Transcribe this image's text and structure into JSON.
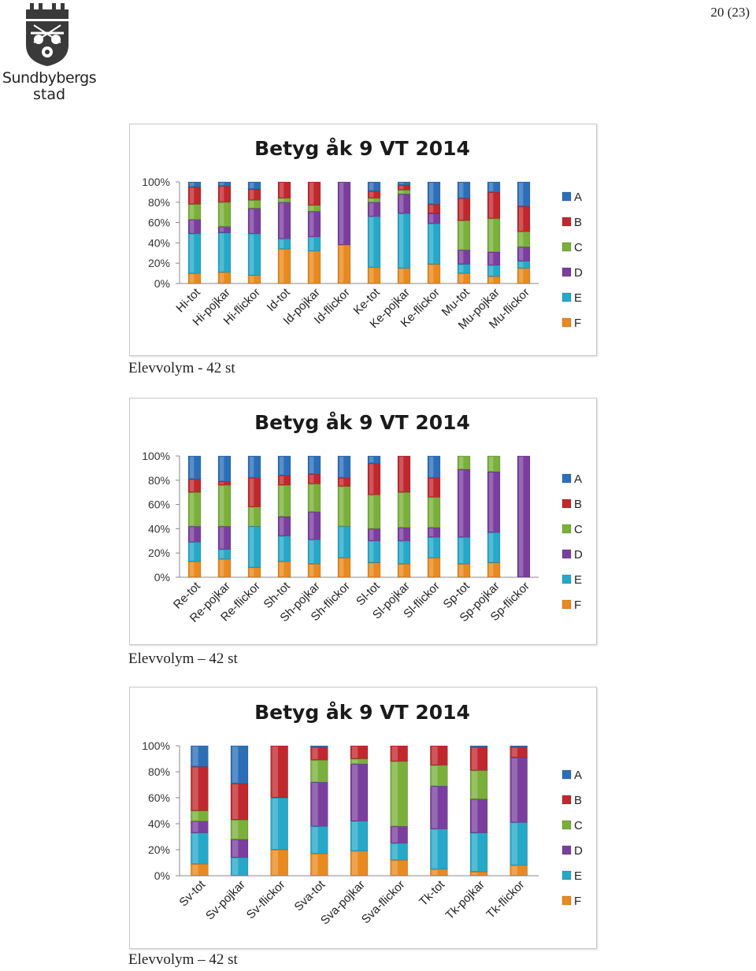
{
  "page": {
    "number": "20 (23)"
  },
  "logo": {
    "line1": "Sundbybergs",
    "line2": "stad"
  },
  "colors": {
    "A": "#2c6fb8",
    "B": "#c0282d",
    "C": "#7ab03a",
    "D": "#7a3f9e",
    "E": "#26a8c8",
    "F": "#e88a1f"
  },
  "chart_data": [
    {
      "type": "bar",
      "stacked": true,
      "title": "Betyg åk 9 VT 2014",
      "yticks": [
        "0%",
        "20%",
        "40%",
        "60%",
        "80%",
        "100%"
      ],
      "ylim": [
        0,
        100
      ],
      "legend": [
        "A",
        "B",
        "C",
        "D",
        "E",
        "F"
      ],
      "legend_position": "right",
      "categories": [
        "Hi-tot",
        "Hi-pojkar",
        "Hi-flickor",
        "Id-tot",
        "Id-pojkar",
        "Id-flickor",
        "Ke-tot",
        "Ke-pojkar",
        "Ke-flickor",
        "Mu-tot",
        "Mu-pojkar",
        "Mu-flickor"
      ],
      "series": [
        {
          "name": "F",
          "values": [
            10,
            11,
            8,
            34,
            32,
            38,
            16,
            15,
            19,
            10,
            7,
            15
          ]
        },
        {
          "name": "E",
          "values": [
            39,
            39,
            41,
            10,
            14,
            0,
            50,
            54,
            40,
            9,
            11,
            7
          ]
        },
        {
          "name": "D",
          "values": [
            14,
            6,
            25,
            36,
            25,
            62,
            14,
            19,
            10,
            14,
            13,
            14
          ]
        },
        {
          "name": "C",
          "values": [
            15,
            24,
            8,
            4,
            6,
            0,
            4,
            4,
            0,
            29,
            33,
            15
          ]
        },
        {
          "name": "B",
          "values": [
            17,
            16,
            11,
            16,
            23,
            0,
            7,
            5,
            9,
            22,
            26,
            25
          ]
        },
        {
          "name": "A",
          "values": [
            5,
            4,
            7,
            0,
            0,
            0,
            9,
            3,
            22,
            16,
            10,
            24
          ]
        }
      ]
    },
    {
      "type": "bar",
      "stacked": true,
      "title": "Betyg åk 9 VT 2014",
      "yticks": [
        "0%",
        "20%",
        "40%",
        "60%",
        "80%",
        "100%"
      ],
      "ylim": [
        0,
        100
      ],
      "legend": [
        "A",
        "B",
        "C",
        "D",
        "E",
        "F"
      ],
      "legend_position": "right",
      "categories": [
        "Re-tot",
        "Re-pojkar",
        "Re-flickor",
        "Sh-tot",
        "Sh-pojkar",
        "Sh-flickor",
        "Sl-tot",
        "Sl-pojkar",
        "Sl-flickor",
        "Sp-tot",
        "Sp-pojkar",
        "Sp-flickor"
      ],
      "series": [
        {
          "name": "F",
          "values": [
            13,
            15,
            8,
            13,
            11,
            16,
            12,
            11,
            16,
            11,
            12,
            0
          ]
        },
        {
          "name": "E",
          "values": [
            16,
            8,
            34,
            21,
            20,
            26,
            18,
            19,
            17,
            22,
            25,
            0
          ]
        },
        {
          "name": "D",
          "values": [
            13,
            19,
            0,
            16,
            23,
            0,
            10,
            11,
            8,
            56,
            50,
            100
          ]
        },
        {
          "name": "C",
          "values": [
            28,
            34,
            16,
            26,
            23,
            33,
            28,
            29,
            25,
            11,
            13,
            0
          ]
        },
        {
          "name": "B",
          "values": [
            11,
            3,
            24,
            8,
            8,
            7,
            26,
            30,
            16,
            0,
            0,
            0
          ]
        },
        {
          "name": "A",
          "values": [
            19,
            21,
            18,
            16,
            15,
            18,
            6,
            0,
            18,
            0,
            0,
            0
          ]
        }
      ]
    },
    {
      "type": "bar",
      "stacked": true,
      "title": "Betyg åk 9 VT 2014",
      "yticks": [
        "0%",
        "20%",
        "40%",
        "60%",
        "80%",
        "100%"
      ],
      "ylim": [
        0,
        100
      ],
      "legend": [
        "A",
        "B",
        "C",
        "D",
        "E",
        "F"
      ],
      "legend_position": "right",
      "categories": [
        "Sv-tot",
        "Sv-pojkar",
        "Sv-flickor",
        "Sva-tot",
        "Sva-pojkar",
        "Sva-flickor",
        "Tk-tot",
        "Tk-pojkar",
        "Tk-flickor"
      ],
      "series": [
        {
          "name": "F",
          "values": [
            9,
            0,
            20,
            17,
            19,
            12,
            5,
            3,
            8
          ]
        },
        {
          "name": "E",
          "values": [
            24,
            14,
            40,
            21,
            23,
            13,
            31,
            30,
            33
          ]
        },
        {
          "name": "D",
          "values": [
            9,
            14,
            0,
            34,
            44,
            13,
            33,
            26,
            50
          ]
        },
        {
          "name": "C",
          "values": [
            8,
            15,
            0,
            17,
            4,
            50,
            16,
            22,
            0
          ]
        },
        {
          "name": "B",
          "values": [
            34,
            28,
            40,
            10,
            10,
            12,
            15,
            18,
            8
          ]
        },
        {
          "name": "A",
          "values": [
            16,
            29,
            0,
            1,
            0,
            0,
            0,
            1,
            1
          ]
        }
      ]
    }
  ],
  "captions": [
    "Elevvolym - 42 st",
    "Elevvolym – 42 st",
    "Elevvolym – 42 st"
  ]
}
